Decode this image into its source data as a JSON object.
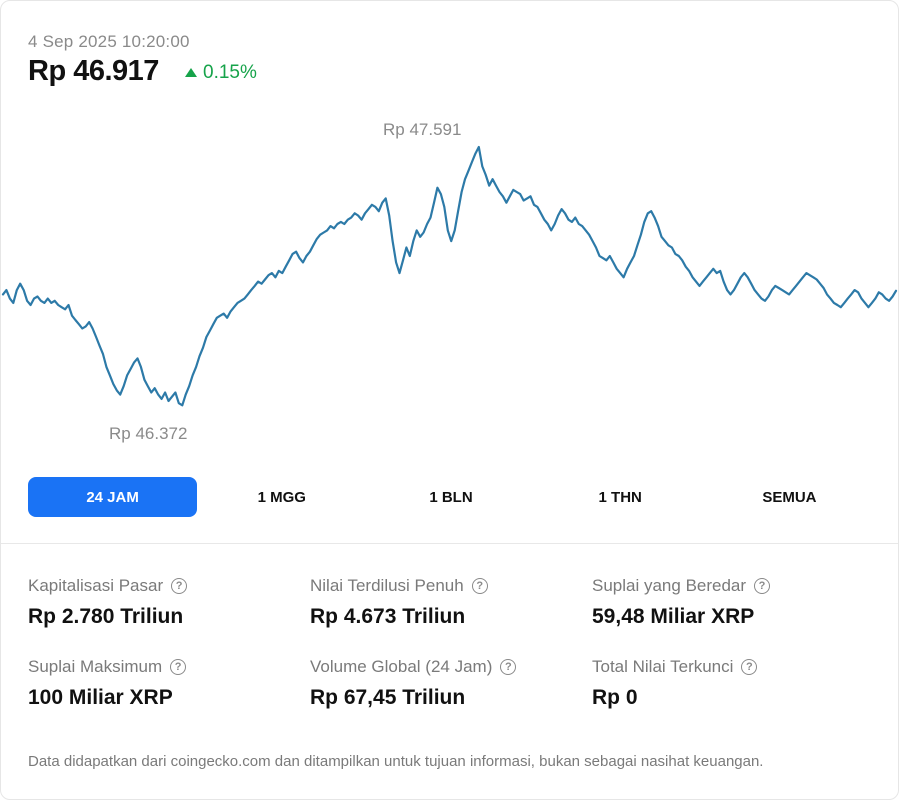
{
  "header": {
    "timestamp": "4 Sep 2025 10:20:00",
    "price": "Rp 46.917",
    "change": "0.15%"
  },
  "colors": {
    "line": "#2d7aa8",
    "positive": "#16a34a",
    "active_tab": "#1a73f5"
  },
  "chart_data": {
    "type": "line",
    "title": "",
    "xlabel": "",
    "ylabel": "",
    "high_label": "Rp 47.591",
    "low_label": "Rp 46.372",
    "ylim": [
      46300,
      47700
    ],
    "values": [
      46900,
      46920,
      46880,
      46860,
      46920,
      46950,
      46920,
      46870,
      46850,
      46880,
      46890,
      46870,
      46860,
      46880,
      46860,
      46870,
      46850,
      46840,
      46830,
      46850,
      46800,
      46780,
      46760,
      46740,
      46750,
      46770,
      46740,
      46700,
      46660,
      46620,
      46560,
      46520,
      46480,
      46450,
      46430,
      46470,
      46520,
      46550,
      46580,
      46600,
      46560,
      46500,
      46470,
      46440,
      46460,
      46430,
      46410,
      46440,
      46400,
      46420,
      46440,
      46390,
      46380,
      46430,
      46470,
      46520,
      46560,
      46610,
      46650,
      46700,
      46730,
      46760,
      46790,
      46800,
      46810,
      46790,
      46820,
      46840,
      46860,
      46870,
      46880,
      46900,
      46920,
      46940,
      46960,
      46950,
      46970,
      46990,
      47000,
      46980,
      47010,
      47000,
      47030,
      47060,
      47090,
      47100,
      47070,
      47050,
      47080,
      47100,
      47130,
      47160,
      47180,
      47190,
      47200,
      47220,
      47210,
      47230,
      47240,
      47230,
      47250,
      47260,
      47280,
      47270,
      47250,
      47280,
      47300,
      47320,
      47310,
      47290,
      47330,
      47350,
      47270,
      47150,
      47050,
      47000,
      47060,
      47120,
      47080,
      47150,
      47200,
      47170,
      47190,
      47230,
      47260,
      47330,
      47400,
      47370,
      47310,
      47200,
      47150,
      47200,
      47290,
      47380,
      47440,
      47480,
      47520,
      47560,
      47591,
      47500,
      47460,
      47410,
      47440,
      47410,
      47380,
      47360,
      47330,
      47360,
      47390,
      47380,
      47370,
      47340,
      47350,
      47360,
      47320,
      47310,
      47280,
      47250,
      47230,
      47200,
      47230,
      47270,
      47300,
      47280,
      47250,
      47240,
      47260,
      47230,
      47220,
      47200,
      47180,
      47150,
      47120,
      47080,
      47070,
      47060,
      47080,
      47050,
      47020,
      47000,
      46980,
      47020,
      47050,
      47080,
      47130,
      47180,
      47240,
      47280,
      47290,
      47260,
      47220,
      47170,
      47150,
      47130,
      47120,
      47090,
      47080,
      47060,
      47030,
      47010,
      46980,
      46960,
      46940,
      46960,
      46980,
      47000,
      47020,
      47000,
      47010,
      46960,
      46920,
      46900,
      46920,
      46950,
      46980,
      47000,
      46980,
      46950,
      46920,
      46900,
      46880,
      46870,
      46890,
      46920,
      46940,
      46930,
      46920,
      46910,
      46900,
      46920,
      46940,
      46960,
      46980,
      47000,
      46990,
      46980,
      46970,
      46950,
      46930,
      46900,
      46880,
      46860,
      46850,
      46840,
      46860,
      46880,
      46900,
      46920,
      46910,
      46880,
      46860,
      46840,
      46860,
      46880,
      46910,
      46900,
      46880,
      46870,
      46890,
      46917
    ]
  },
  "tabs": [
    {
      "label": "24 JAM"
    },
    {
      "label": "1 MGG"
    },
    {
      "label": "1 BLN"
    },
    {
      "label": "1 THN"
    },
    {
      "label": "SEMUA"
    }
  ],
  "stats": [
    {
      "label": "Kapitalisasi Pasar",
      "value": "Rp 2.780 Triliun"
    },
    {
      "label": "Nilai Terdilusi Penuh",
      "value": "Rp 4.673 Triliun"
    },
    {
      "label": "Suplai yang Beredar",
      "value": "59,48 Miliar XRP"
    },
    {
      "label": "Suplai Maksimum",
      "value": "100 Miliar XRP"
    },
    {
      "label": "Volume Global (24 Jam)",
      "value": "Rp 67,45 Triliun"
    },
    {
      "label": "Total Nilai Terkunci",
      "value": "Rp 0"
    }
  ],
  "footer": {
    "disclaimer": "Data didapatkan dari coingecko.com dan ditampilkan untuk tujuan informasi, bukan sebagai nasihat keuangan."
  }
}
